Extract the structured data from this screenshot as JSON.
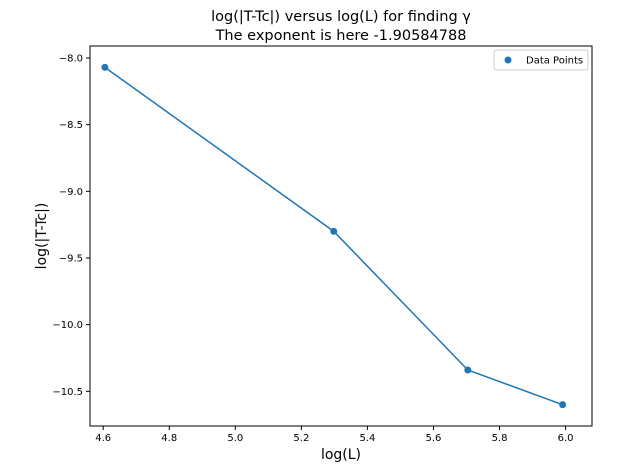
{
  "chart_data": {
    "type": "line",
    "title_line1": "log(|T-Tc|) versus log(L) for finding γ",
    "title_line2": "The exponent is here -1.90584788",
    "xlabel": "log(L)",
    "ylabel": "log(|T-Tc|)",
    "xlim": [
      4.56,
      6.08
    ],
    "ylim": [
      -10.76,
      -7.91
    ],
    "xticks": [
      4.6,
      4.8,
      5.0,
      5.2,
      5.4,
      5.6,
      5.8,
      6.0
    ],
    "yticks": [
      -8.0,
      -8.5,
      -9.0,
      -9.5,
      -10.0,
      -10.5
    ],
    "xtick_labels": [
      "4.6",
      "4.8",
      "5.0",
      "5.2",
      "5.4",
      "5.6",
      "5.8",
      "6.0"
    ],
    "ytick_labels": [
      "−8.0",
      "−8.5",
      "−9.0",
      "−9.5",
      "−10.0",
      "−10.5"
    ],
    "grid": false,
    "legend_position": "upper-right",
    "series": [
      {
        "name": "Data Points",
        "color": "#1f77b4",
        "x": [
          4.605,
          5.298,
          5.704,
          5.991
        ],
        "y": [
          -8.07,
          -9.3,
          -10.34,
          -10.6
        ]
      }
    ]
  }
}
